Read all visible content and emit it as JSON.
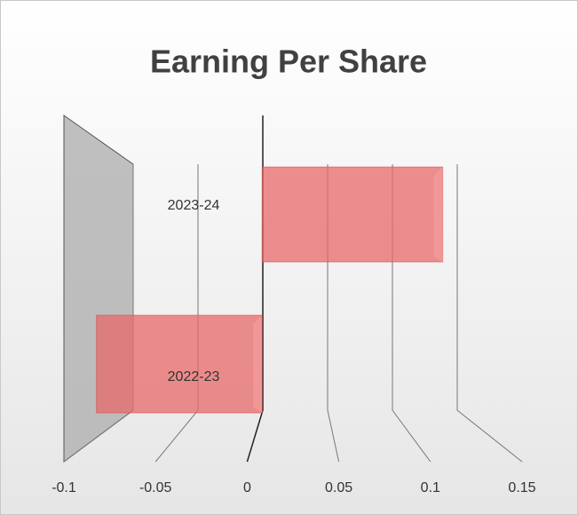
{
  "chart_data": {
    "type": "bar",
    "orientation": "horizontal",
    "title": "Earning Per Share",
    "categories": [
      "2022-23",
      "2023-24"
    ],
    "values": [
      -0.09,
      0.12
    ],
    "color": "#e86a6a",
    "xlim": [
      -0.1,
      0.15
    ],
    "xticks": [
      -0.1,
      -0.05,
      0,
      0.05,
      0.1,
      0.15
    ],
    "grid": true
  }
}
